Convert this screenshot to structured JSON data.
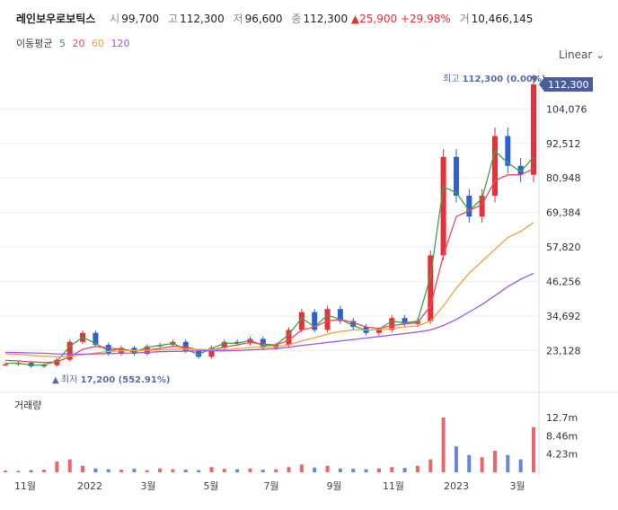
{
  "header": {
    "title": "레인보우로보틱스",
    "open_label": "시",
    "open": "99,700",
    "high_label": "고",
    "high": "112,300",
    "low_label": "저",
    "low": "96,600",
    "close_label": "종",
    "close": "112,300",
    "change": "▲25,900",
    "change_pct": "+29.98%",
    "volume_label": "거",
    "volume": "10,466,145"
  },
  "moving_average": {
    "label": "이동평균",
    "periods": [
      {
        "value": "5",
        "color": "#3aa64a"
      },
      {
        "value": "20",
        "color": "#e84a5f"
      },
      {
        "value": "60",
        "color": "#f0a040"
      },
      {
        "value": "120",
        "color": "#9a5ae8"
      }
    ]
  },
  "scale_toggle": "Linear",
  "volume_panel_label": "거래량",
  "annotations": {
    "max_label": "최고",
    "max_value": "112,300 (0.00%)",
    "min_label": "최저",
    "min_value": "17,200 (552.91%)",
    "current_price": "112,300"
  },
  "colors": {
    "up": "#e8303a",
    "down": "#2f5fd0",
    "axis": "#333333",
    "grid": "#eeeeee"
  },
  "chart_data": {
    "type": "candlestick",
    "y_ticks": [
      "104,076",
      "92,512",
      "80,948",
      "69,384",
      "57,820",
      "46,256",
      "34,692",
      "23,128"
    ],
    "ylim": [
      17200,
      112300
    ],
    "volume_ticks": [
      "12.7m",
      "8.46m",
      "4.23m"
    ],
    "volume_lim": [
      0,
      12700000
    ],
    "x_ticks": [
      "11월",
      "2022",
      "3월",
      "5월",
      "7월",
      "9월",
      "11월",
      "2023",
      "3월"
    ],
    "series": [
      {
        "name": "close",
        "values": [
          18500,
          19000,
          17800,
          18200,
          20000,
          26000,
          29000,
          25000,
          22000,
          24000,
          22000,
          24500,
          25000,
          26000,
          23000,
          21000,
          24000,
          26000,
          25500,
          27000,
          24000,
          25000,
          30000,
          36000,
          30000,
          37000,
          33000,
          31000,
          29000,
          30000,
          34000,
          32000,
          33000,
          55000,
          88000,
          75000,
          68000,
          75000,
          95000,
          85000,
          82000,
          112300
        ]
      },
      {
        "name": "MA5",
        "values": [
          18800,
          18900,
          18200,
          18300,
          19500,
          24500,
          27500,
          25500,
          23000,
          23800,
          22500,
          24200,
          24800,
          25500,
          23500,
          21800,
          23800,
          25500,
          25500,
          26500,
          24800,
          25000,
          28500,
          34000,
          31000,
          35000,
          33500,
          31500,
          29800,
          30200,
          33000,
          32300,
          33000,
          48000,
          78000,
          76000,
          70000,
          74000,
          90000,
          86000,
          83000,
          88000
        ]
      },
      {
        "name": "MA20",
        "values": [
          19800,
          19600,
          19300,
          19100,
          19300,
          21000,
          23500,
          24500,
          24000,
          23500,
          23000,
          23300,
          23800,
          24500,
          24300,
          23300,
          23200,
          24300,
          25000,
          25800,
          25300,
          25000,
          26500,
          30000,
          31000,
          33000,
          33500,
          32500,
          31000,
          30500,
          31500,
          32000,
          32500,
          38000,
          55000,
          68000,
          70000,
          72000,
          80000,
          82000,
          82000,
          84000
        ]
      },
      {
        "name": "MA60",
        "values": [
          22000,
          21800,
          21500,
          21200,
          21000,
          21200,
          21700,
          22300,
          22800,
          23000,
          23100,
          23200,
          23300,
          23500,
          23600,
          23500,
          23400,
          23400,
          23700,
          24100,
          24300,
          24400,
          25000,
          26300,
          27400,
          28600,
          29500,
          30000,
          30000,
          30100,
          30500,
          31000,
          31300,
          33000,
          38000,
          44000,
          49000,
          53000,
          57000,
          61000,
          63000,
          66000
        ]
      },
      {
        "name": "MA120",
        "values": [
          22500,
          22400,
          22300,
          22200,
          22000,
          21900,
          21900,
          22000,
          22100,
          22200,
          22300,
          22500,
          22700,
          22800,
          22900,
          23000,
          23000,
          23000,
          23100,
          23300,
          23500,
          23700,
          24200,
          24800,
          25300,
          25800,
          26300,
          26800,
          27300,
          27800,
          28300,
          28800,
          29300,
          30000,
          31500,
          33500,
          36000,
          38500,
          41500,
          44500,
          47000,
          49000
        ]
      }
    ],
    "volume_values": [
      400000,
      300000,
      500000,
      600000,
      2500000,
      3000000,
      1500000,
      900000,
      700000,
      600000,
      800000,
      500000,
      900000,
      700000,
      600000,
      500000,
      1200000,
      800000,
      700000,
      900000,
      600000,
      700000,
      1200000,
      1800000,
      1100000,
      1500000,
      900000,
      800000,
      700000,
      900000,
      1200000,
      1000000,
      1500000,
      3000000,
      12700000,
      6000000,
      4000000,
      3500000,
      5000000,
      4000000,
      3000000,
      10466145
    ]
  }
}
